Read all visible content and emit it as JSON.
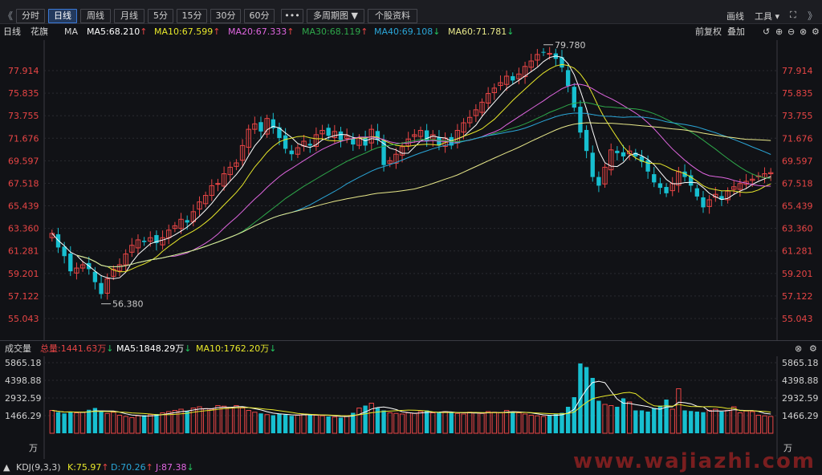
{
  "toolbar": {
    "nav_prev": "《",
    "nav_next": "》",
    "periods": [
      "分时",
      "日线",
      "周线",
      "月线",
      "5分",
      "15分",
      "30分",
      "60分",
      "•••",
      "多周期图 ▼",
      "个股资料"
    ],
    "active_period": "日线",
    "draw_label": "画线",
    "tools_label": "工具 ▾"
  },
  "ma_header": {
    "period": "日线",
    "stock": "花旗",
    "label": "MA",
    "ma5": "MA5:68.210",
    "ma10": "MA10:67.599",
    "ma20": "MA20:67.333",
    "ma30": "MA30:68.119",
    "ma40": "MA40:69.108",
    "ma60": "MA60:71.781",
    "ma5_dir": "↑",
    "ma10_dir": "↑",
    "ma20_dir": "↑",
    "ma30_dir": "↑",
    "ma40_dir": "↓",
    "ma60_dir": "↓",
    "adjust": "前复权",
    "overlay": "叠加"
  },
  "colors": {
    "up": "#e84545",
    "down": "#17bfd0",
    "ma5": "#ffffff",
    "ma10": "#e8e82a",
    "ma20": "#e066e0",
    "ma30": "#2ea84a",
    "ma40": "#2aa6d8",
    "ma60": "#e8e88a",
    "grid": "#2a2b30"
  },
  "price_axis": {
    "ticks": [
      "77.914",
      "75.835",
      "73.755",
      "71.676",
      "69.597",
      "67.518",
      "65.439",
      "63.360",
      "61.281",
      "59.201",
      "57.122",
      "55.043"
    ],
    "tick_values": [
      77.914,
      75.835,
      73.755,
      71.676,
      69.597,
      67.518,
      65.439,
      63.36,
      61.281,
      59.201,
      57.122,
      55.043
    ],
    "high_label": "79.780",
    "low_label": "56.380"
  },
  "volume": {
    "title": "成交量",
    "total": "总量:1441.63万",
    "ma5": "MA5:1848.29万",
    "ma10": "MA10:1762.20万",
    "ticks": [
      "5865.18",
      "4398.88",
      "2932.59",
      "1466.29"
    ],
    "tick_values": [
      5865.18,
      4398.88,
      2932.59,
      1466.29
    ],
    "unit": "万"
  },
  "kdj": {
    "label": "KDJ(9,3,3)",
    "k": "K:75.97",
    "d": "D:70.26",
    "j": "J:87.38"
  },
  "watermark": "www.wajiazhi.com",
  "chart_data": {
    "type": "candlestick",
    "close": [
      62.9,
      61.6,
      60.8,
      59.4,
      59.7,
      60.0,
      59.6,
      58.4,
      57.3,
      58.7,
      59.6,
      60.0,
      61.0,
      61.8,
      62.3,
      62.1,
      62.5,
      62.0,
      62.5,
      63.2,
      63.6,
      64.2,
      63.9,
      64.9,
      65.8,
      66.4,
      67.3,
      67.5,
      68.4,
      69.0,
      69.4,
      71.0,
      72.5,
      73.0,
      72.3,
      73.5,
      72.6,
      71.7,
      70.7,
      70.2,
      70.8,
      71.4,
      71.0,
      72.0,
      72.4,
      71.9,
      72.3,
      71.5,
      71.9,
      71.1,
      71.7,
      71.0,
      72.5,
      71.5,
      69.2,
      69.6,
      70.2,
      70.9,
      71.6,
      72.0,
      72.4,
      71.4,
      72.0,
      71.0,
      71.7,
      71.0,
      72.4,
      73.1,
      73.6,
      74.3,
      75.0,
      75.8,
      76.3,
      76.8,
      77.4,
      77.0,
      77.6,
      78.3,
      78.8,
      79.4,
      79.6,
      79.5,
      79.0,
      78.2,
      76.5,
      74.5,
      72.2,
      70.5,
      68.1,
      67.3,
      69.0,
      70.6,
      70.3,
      70.0,
      70.5,
      70.0,
      69.5,
      68.6,
      67.6,
      67.1,
      66.6,
      67.5,
      68.6,
      68.1,
      67.3,
      66.3,
      65.3,
      66.0,
      66.5,
      66.0,
      66.8,
      67.2,
      67.5,
      67.7,
      67.9,
      68.2,
      68.4,
      68.5
    ],
    "volume": [
      1900,
      1750,
      1650,
      1800,
      1700,
      1750,
      1950,
      2100,
      1800,
      1650,
      1750,
      1500,
      1400,
      1300,
      1450,
      1500,
      1550,
      1600,
      1700,
      1800,
      1900,
      2000,
      1850,
      2100,
      2200,
      2050,
      2000,
      2300,
      2250,
      2150,
      2300,
      2100,
      1900,
      1750,
      1650,
      1550,
      1500,
      1600,
      1550,
      1450,
      1500,
      1600,
      1550,
      1500,
      1450,
      1400,
      1350,
      1300,
      1450,
      1700,
      2100,
      2300,
      2500,
      2100,
      1900,
      1700,
      1650,
      1600,
      1700,
      1650,
      1800,
      1900,
      1700,
      1750,
      1800,
      1700,
      1650,
      1600,
      1750,
      1700,
      1650,
      1800,
      1750,
      1700,
      1900,
      1800,
      1700,
      1600,
      1500,
      1450,
      1400,
      1500,
      1600,
      1700,
      2200,
      3000,
      5800,
      5500,
      4600,
      2700,
      2400,
      2300,
      2200,
      2900,
      2600,
      1900,
      1900,
      1800,
      2100,
      2300,
      2800,
      2000,
      3700,
      1900,
      1850,
      1800,
      1750,
      1900,
      2000,
      1800,
      1900,
      2200,
      1700,
      1850,
      1800,
      1500,
      1450,
      1400
    ]
  }
}
